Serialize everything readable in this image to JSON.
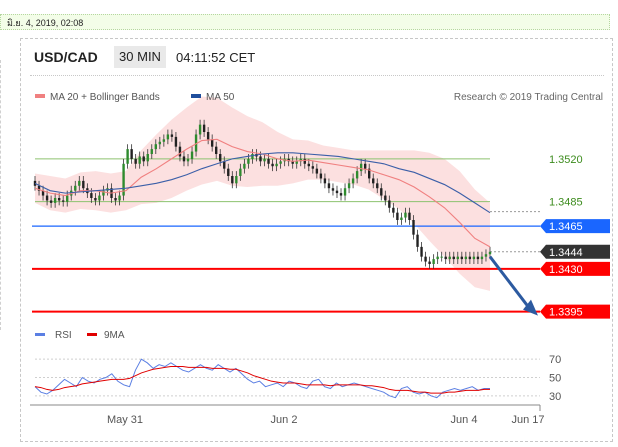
{
  "datebar": {
    "text": "มิ.ย. 4, 2019, 02:08"
  },
  "header": {
    "symbol": "USD/CAD",
    "timeframe": "30 MIN",
    "time": "04:11:52 CET"
  },
  "chart_data": [
    {
      "type": "candlestick",
      "legend": [
        {
          "name": "MA 20 + Bollinger Bands",
          "color": "#f08080"
        },
        {
          "name": "MA 50",
          "color": "#1f4e9c"
        }
      ],
      "credit": "Research © 2019 Trading Central",
      "x_ticks": [
        "May 31",
        "Jun 2",
        "Jun 4",
        "Jun 17"
      ],
      "ylim": [
        1.338,
        1.356
      ],
      "levels": [
        {
          "value": 1.352,
          "label": "1.3520",
          "color": "#8dc26f",
          "type": "line-label"
        },
        {
          "value": 1.3485,
          "label": "1.3485",
          "color": "#8dc26f",
          "type": "line-label"
        },
        {
          "value": 1.3465,
          "label": "1.3465",
          "color": "#1a66ff",
          "type": "badge"
        },
        {
          "value": 1.3444,
          "label": "1.3444",
          "color": "#333333",
          "type": "badge"
        },
        {
          "value": 1.343,
          "label": "1.3430",
          "color": "#ff0000",
          "type": "badge"
        },
        {
          "value": 1.3395,
          "label": "1.3395",
          "color": "#ff0000",
          "type": "badge"
        }
      ],
      "close": [
        1.3498,
        1.3494,
        1.349,
        1.3486,
        1.3484,
        1.3488,
        1.3486,
        1.3485,
        1.349,
        1.3494,
        1.3498,
        1.3502,
        1.3496,
        1.3492,
        1.3488,
        1.3486,
        1.349,
        1.3494,
        1.3496,
        1.3488,
        1.3486,
        1.349,
        1.3516,
        1.3528,
        1.352,
        1.3516,
        1.3522,
        1.3518,
        1.3524,
        1.3528,
        1.3532,
        1.3534,
        1.3536,
        1.354,
        1.3538,
        1.353,
        1.3522,
        1.3518,
        1.352,
        1.3526,
        1.354,
        1.3548,
        1.3542,
        1.3536,
        1.353,
        1.3524,
        1.3518,
        1.3512,
        1.3506,
        1.35,
        1.3506,
        1.3512,
        1.3516,
        1.352,
        1.3524,
        1.3522,
        1.3518,
        1.352,
        1.3516,
        1.3514,
        1.3516,
        1.3518,
        1.352,
        1.3518,
        1.3516,
        1.3518,
        1.352,
        1.3516,
        1.3514,
        1.3512,
        1.3508,
        1.3504,
        1.35,
        1.3496,
        1.3494,
        1.3492,
        1.349,
        1.3496,
        1.35,
        1.3504,
        1.351,
        1.3516,
        1.3512,
        1.3504,
        1.35,
        1.3496,
        1.349,
        1.3486,
        1.348,
        1.3476,
        1.347,
        1.3472,
        1.3476,
        1.347,
        1.3458,
        1.3448,
        1.344,
        1.3436,
        1.3434,
        1.3438,
        1.344,
        1.344,
        1.3438,
        1.344,
        1.3438,
        1.344,
        1.3438,
        1.344,
        1.3438,
        1.344,
        1.3438,
        1.344,
        1.3442,
        1.3444
      ],
      "ma50": [
        1.35,
        1.3494,
        1.3492,
        1.3493,
        1.3494,
        1.3495,
        1.3496,
        1.3498,
        1.35,
        1.3503,
        1.3507,
        1.3512,
        1.3516,
        1.352,
        1.3522,
        1.3524,
        1.3525,
        1.3525,
        1.3524,
        1.3523,
        1.3522,
        1.352,
        1.3518,
        1.3516,
        1.3512,
        1.3509,
        1.3504,
        1.3499,
        1.3492,
        1.3484,
        1.3476
      ],
      "ma20": [
        1.3496,
        1.3492,
        1.349,
        1.3494,
        1.3494,
        1.3492,
        1.3494,
        1.3505,
        1.3512,
        1.352,
        1.3528,
        1.3535,
        1.3536,
        1.353,
        1.3526,
        1.3524,
        1.352,
        1.3518,
        1.3519,
        1.3517,
        1.3515,
        1.3513,
        1.3511,
        1.3507,
        1.3503,
        1.3497,
        1.3489,
        1.348,
        1.3468,
        1.3455,
        1.3448
      ],
      "bb_width": [
        0.0012,
        0.0014,
        0.0014,
        0.0015,
        0.0016,
        0.0016,
        0.0016,
        0.0022,
        0.0028,
        0.0032,
        0.0034,
        0.0036,
        0.0034,
        0.0032,
        0.0029,
        0.0026,
        0.0022,
        0.0018,
        0.0016,
        0.0014,
        0.0014,
        0.0014,
        0.0016,
        0.002,
        0.0024,
        0.003,
        0.0036,
        0.004,
        0.0042,
        0.004,
        0.0036
      ],
      "forecast": [
        [
          1.344,
          1.3395
        ]
      ]
    },
    {
      "type": "line",
      "legend": [
        {
          "name": "RSI",
          "color": "#5b7fe3"
        },
        {
          "name": "9MA",
          "color": "#e00000"
        }
      ],
      "ylim": [
        20,
        80
      ],
      "y_ticks": [
        30,
        50,
        70
      ],
      "rsi": [
        40,
        34,
        32,
        36,
        42,
        48,
        44,
        40,
        50,
        46,
        44,
        48,
        50,
        54,
        46,
        42,
        40,
        58,
        70,
        66,
        60,
        64,
        62,
        66,
        62,
        58,
        56,
        60,
        64,
        60,
        58,
        64,
        60,
        56,
        60,
        54,
        48,
        44,
        46,
        40,
        42,
        44,
        40,
        46,
        44,
        40,
        38,
        46,
        48,
        40,
        38,
        44,
        40,
        42,
        44,
        42,
        40,
        38,
        36,
        34,
        30,
        28,
        38,
        40,
        34,
        32,
        34,
        30,
        28,
        34,
        36,
        38,
        36,
        38,
        40,
        36,
        38,
        38
      ],
      "ma9": [
        40,
        39,
        37,
        36,
        37,
        39,
        40,
        41,
        43,
        44,
        45,
        46,
        47,
        48,
        48,
        48,
        49,
        52,
        55,
        57,
        59,
        60,
        61,
        62,
        62,
        62,
        61,
        61,
        61,
        61,
        60,
        60,
        60,
        59,
        59,
        57,
        55,
        52,
        50,
        48,
        46,
        45,
        44,
        44,
        44,
        43,
        42,
        42,
        42,
        42,
        41,
        42,
        42,
        42,
        42,
        42,
        41,
        41,
        40,
        39,
        37,
        36,
        36,
        36,
        35,
        34,
        34,
        33,
        33,
        33,
        34,
        34,
        35,
        36,
        36,
        36,
        37,
        37
      ]
    }
  ]
}
